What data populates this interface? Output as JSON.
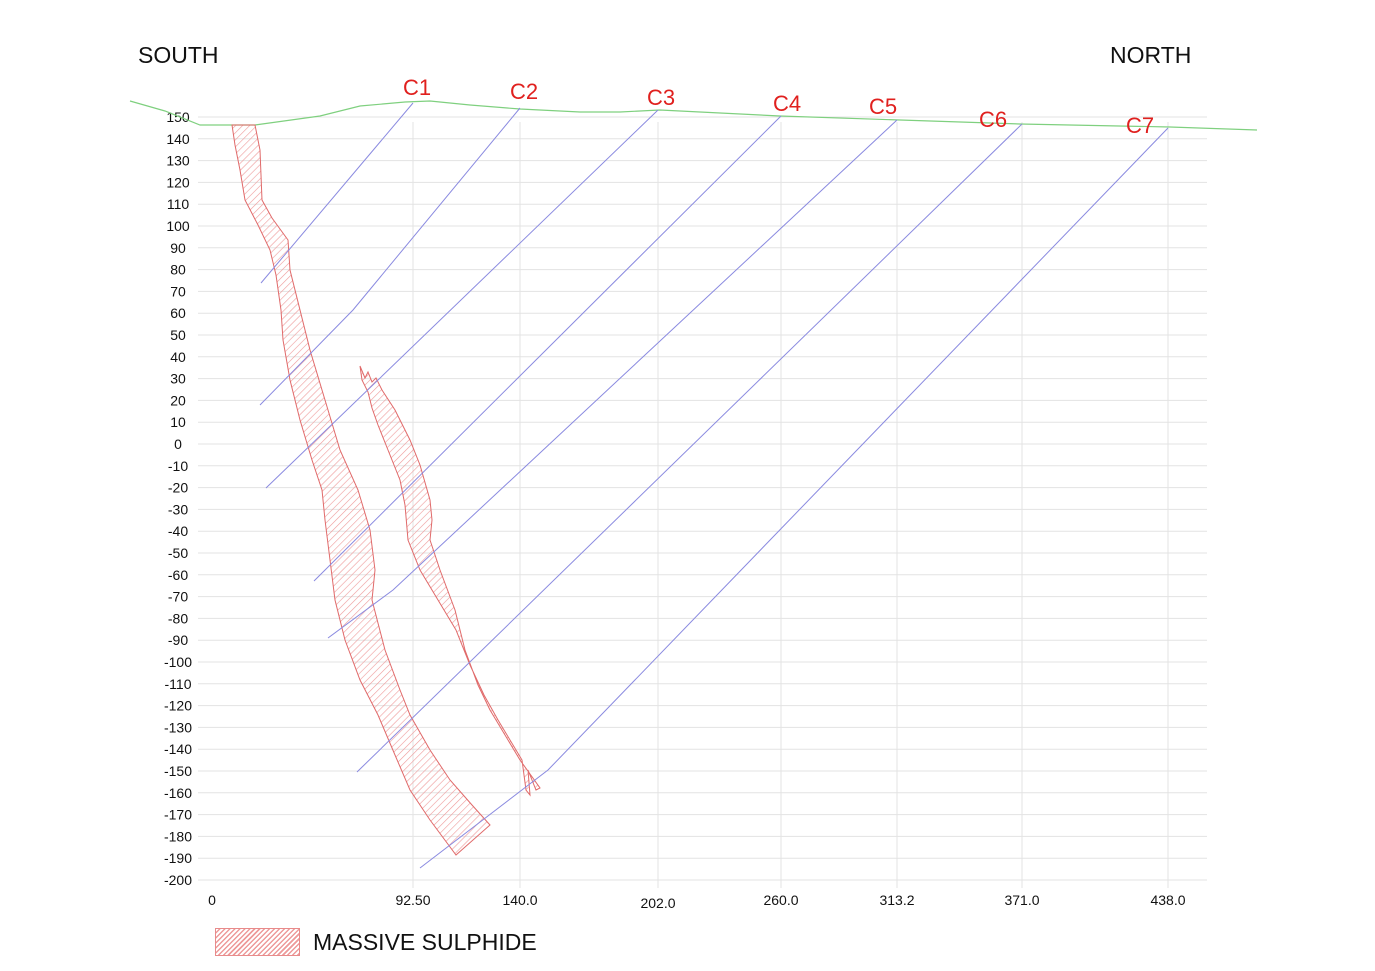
{
  "directions": {
    "left": "SOUTH",
    "right": "NORTH"
  },
  "colors": {
    "grid": "#e3e3e3",
    "surface": "#7fd07f",
    "drillhole": "#8a8ae0",
    "sulphide_stroke": "#e06a6a",
    "sulphide_hatch": "#ee9a9a",
    "hole_label": "#e0201e"
  },
  "y_axis": {
    "ticks": [
      150,
      140,
      130,
      120,
      110,
      100,
      90,
      80,
      70,
      60,
      50,
      40,
      30,
      20,
      10,
      0,
      -10,
      -20,
      -30,
      -40,
      -50,
      -60,
      -70,
      -80,
      -90,
      -100,
      -110,
      -120,
      -130,
      -140,
      -150,
      -160,
      -170,
      -180,
      -190,
      -200
    ]
  },
  "x_axis": {
    "ticks": [
      {
        "value": 0,
        "label": "0"
      },
      {
        "value": 92.5,
        "label": "92.50"
      },
      {
        "value": 140,
        "label": "140.0"
      },
      {
        "value": 202,
        "label": "202.0"
      },
      {
        "value": 260,
        "label": "260.0"
      },
      {
        "value": 313.2,
        "label": "313.2"
      },
      {
        "value": 371,
        "label": "371.0"
      },
      {
        "value": 438,
        "label": "438.0"
      }
    ]
  },
  "drillholes": [
    {
      "name": "C1"
    },
    {
      "name": "C2"
    },
    {
      "name": "C3"
    },
    {
      "name": "C4"
    },
    {
      "name": "C5"
    },
    {
      "name": "C6"
    },
    {
      "name": "C7"
    }
  ],
  "legend": {
    "label": "MASSIVE SULPHIDE"
  }
}
